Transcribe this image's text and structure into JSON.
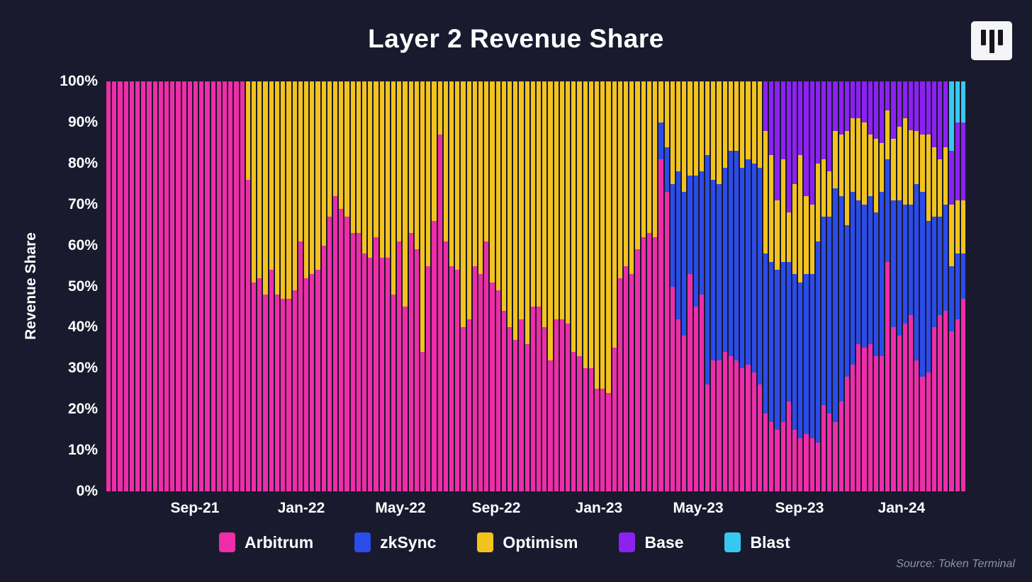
{
  "header": {
    "title": "Layer 2 Revenue Share",
    "logo": "token-terminal-logo"
  },
  "source": {
    "text": "Source: Token Terminal"
  },
  "chart_data": {
    "type": "bar",
    "stacked": true,
    "percent_stacked": true,
    "title": "Layer 2 Revenue Share",
    "ylabel": "Revenue Share",
    "ylim": [
      0,
      100
    ],
    "grid": false,
    "legend_position": "bottom",
    "x_period": "weekly bars, mid-2021 through early 2024",
    "y_ticks": [
      {
        "label": "0%",
        "value": 0
      },
      {
        "label": "10%",
        "value": 10
      },
      {
        "label": "20%",
        "value": 20
      },
      {
        "label": "30%",
        "value": 30
      },
      {
        "label": "40%",
        "value": 40
      },
      {
        "label": "50%",
        "value": 50
      },
      {
        "label": "60%",
        "value": 60
      },
      {
        "label": "70%",
        "value": 70
      },
      {
        "label": "80%",
        "value": 80
      },
      {
        "label": "90%",
        "value": 90
      },
      {
        "label": "100%",
        "value": 100
      }
    ],
    "x_ticks": [
      {
        "label": "Sep-21",
        "pos": 0.1031
      },
      {
        "label": "Jan-22",
        "pos": 0.2269
      },
      {
        "label": "May-22",
        "pos": 0.3424
      },
      {
        "label": "Sep-22",
        "pos": 0.4538
      },
      {
        "label": "Jan-23",
        "pos": 0.5734
      },
      {
        "label": "May-23",
        "pos": 0.689
      },
      {
        "label": "Sep-23",
        "pos": 0.8069
      },
      {
        "label": "Jan-24",
        "pos": 0.9257
      }
    ],
    "series": [
      {
        "name": "Arbitrum",
        "color": "#ee2da8"
      },
      {
        "name": "zkSync",
        "color": "#2b4ce8"
      },
      {
        "name": "Optimism",
        "color": "#f2c31e"
      },
      {
        "name": "Base",
        "color": "#8c21f2"
      },
      {
        "name": "Blast",
        "color": "#36c8f1"
      }
    ],
    "bars": [
      [
        100,
        0,
        0,
        0,
        0
      ],
      [
        100,
        0,
        0,
        0,
        0
      ],
      [
        100,
        0,
        0,
        0,
        0
      ],
      [
        100,
        0,
        0,
        0,
        0
      ],
      [
        100,
        0,
        0,
        0,
        0
      ],
      [
        100,
        0,
        0,
        0,
        0
      ],
      [
        100,
        0,
        0,
        0,
        0
      ],
      [
        100,
        0,
        0,
        0,
        0
      ],
      [
        100,
        0,
        0,
        0,
        0
      ],
      [
        100,
        0,
        0,
        0,
        0
      ],
      [
        100,
        0,
        0,
        0,
        0
      ],
      [
        100,
        0,
        0,
        0,
        0
      ],
      [
        100,
        0,
        0,
        0,
        0
      ],
      [
        100,
        0,
        0,
        0,
        0
      ],
      [
        100,
        0,
        0,
        0,
        0
      ],
      [
        100,
        0,
        0,
        0,
        0
      ],
      [
        100,
        0,
        0,
        0,
        0
      ],
      [
        100,
        0,
        0,
        0,
        0
      ],
      [
        100,
        0,
        0,
        0,
        0
      ],
      [
        100,
        0,
        0,
        0,
        0
      ],
      [
        100,
        0,
        0,
        0,
        0
      ],
      [
        100,
        0,
        0,
        0,
        0
      ],
      [
        100,
        0,
        0,
        0,
        0
      ],
      [
        100,
        0,
        0,
        0,
        0
      ],
      [
        76,
        0,
        24,
        0,
        0
      ],
      [
        51,
        0,
        49,
        0,
        0
      ],
      [
        52,
        0,
        48,
        0,
        0
      ],
      [
        48,
        0,
        52,
        0,
        0
      ],
      [
        54,
        0,
        46,
        0,
        0
      ],
      [
        48,
        0,
        52,
        0,
        0
      ],
      [
        47,
        0,
        53,
        0,
        0
      ],
      [
        47,
        0,
        53,
        0,
        0
      ],
      [
        49,
        0,
        51,
        0,
        0
      ],
      [
        61,
        0,
        39,
        0,
        0
      ],
      [
        52,
        0,
        48,
        0,
        0
      ],
      [
        53,
        0,
        47,
        0,
        0
      ],
      [
        54,
        0,
        46,
        0,
        0
      ],
      [
        60,
        0,
        40,
        0,
        0
      ],
      [
        67,
        0,
        33,
        0,
        0
      ],
      [
        72,
        0,
        28,
        0,
        0
      ],
      [
        69,
        0,
        31,
        0,
        0
      ],
      [
        67,
        0,
        33,
        0,
        0
      ],
      [
        63,
        0,
        37,
        0,
        0
      ],
      [
        63,
        0,
        37,
        0,
        0
      ],
      [
        58,
        0,
        42,
        0,
        0
      ],
      [
        57,
        0,
        43,
        0,
        0
      ],
      [
        62,
        0,
        38,
        0,
        0
      ],
      [
        57,
        0,
        43,
        0,
        0
      ],
      [
        57,
        0,
        43,
        0,
        0
      ],
      [
        48,
        0,
        52,
        0,
        0
      ],
      [
        61,
        0,
        39,
        0,
        0
      ],
      [
        45,
        0,
        55,
        0,
        0
      ],
      [
        63,
        0,
        37,
        0,
        0
      ],
      [
        59,
        0,
        41,
        0,
        0
      ],
      [
        34,
        0,
        66,
        0,
        0
      ],
      [
        55,
        0,
        45,
        0,
        0
      ],
      [
        66,
        0,
        34,
        0,
        0
      ],
      [
        87,
        0,
        13,
        0,
        0
      ],
      [
        61,
        0,
        39,
        0,
        0
      ],
      [
        55,
        0,
        45,
        0,
        0
      ],
      [
        54,
        0,
        46,
        0,
        0
      ],
      [
        40,
        0,
        60,
        0,
        0
      ],
      [
        42,
        0,
        58,
        0,
        0
      ],
      [
        55,
        0,
        45,
        0,
        0
      ],
      [
        53,
        0,
        47,
        0,
        0
      ],
      [
        61,
        0,
        39,
        0,
        0
      ],
      [
        51,
        0,
        49,
        0,
        0
      ],
      [
        49,
        0,
        51,
        0,
        0
      ],
      [
        44,
        0,
        56,
        0,
        0
      ],
      [
        40,
        0,
        60,
        0,
        0
      ],
      [
        37,
        0,
        63,
        0,
        0
      ],
      [
        42,
        0,
        58,
        0,
        0
      ],
      [
        36,
        0,
        64,
        0,
        0
      ],
      [
        45,
        0,
        55,
        0,
        0
      ],
      [
        45,
        0,
        55,
        0,
        0
      ],
      [
        40,
        0,
        60,
        0,
        0
      ],
      [
        32,
        0,
        68,
        0,
        0
      ],
      [
        42,
        0,
        58,
        0,
        0
      ],
      [
        42,
        0,
        58,
        0,
        0
      ],
      [
        41,
        0,
        59,
        0,
        0
      ],
      [
        34,
        0,
        66,
        0,
        0
      ],
      [
        33,
        0,
        67,
        0,
        0
      ],
      [
        30,
        0,
        70,
        0,
        0
      ],
      [
        30,
        0,
        70,
        0,
        0
      ],
      [
        25,
        0,
        75,
        0,
        0
      ],
      [
        25,
        0,
        75,
        0,
        0
      ],
      [
        24,
        0,
        76,
        0,
        0
      ],
      [
        35,
        0,
        65,
        0,
        0
      ],
      [
        52,
        0,
        48,
        0,
        0
      ],
      [
        55,
        0,
        45,
        0,
        0
      ],
      [
        53,
        0,
        47,
        0,
        0
      ],
      [
        59,
        0,
        41,
        0,
        0
      ],
      [
        62,
        0,
        38,
        0,
        0
      ],
      [
        63,
        0,
        37,
        0,
        0
      ],
      [
        62,
        0,
        38,
        0,
        0
      ],
      [
        81,
        9,
        10,
        0,
        0
      ],
      [
        73,
        11,
        16,
        0,
        0
      ],
      [
        50,
        25,
        25,
        0,
        0
      ],
      [
        42,
        36,
        22,
        0,
        0
      ],
      [
        38,
        35,
        27,
        0,
        0
      ],
      [
        53,
        24,
        23,
        0,
        0
      ],
      [
        45,
        32,
        23,
        0,
        0
      ],
      [
        48,
        30,
        22,
        0,
        0
      ],
      [
        26,
        56,
        18,
        0,
        0
      ],
      [
        32,
        44,
        24,
        0,
        0
      ],
      [
        32,
        43,
        25,
        0,
        0
      ],
      [
        34,
        45,
        21,
        0,
        0
      ],
      [
        33,
        50,
        17,
        0,
        0
      ],
      [
        32,
        51,
        17,
        0,
        0
      ],
      [
        30,
        49,
        21,
        0,
        0
      ],
      [
        31,
        50,
        19,
        0,
        0
      ],
      [
        29,
        51,
        20,
        0,
        0
      ],
      [
        26,
        53,
        21,
        0,
        0
      ],
      [
        19,
        39,
        30,
        12,
        0
      ],
      [
        17,
        39,
        26,
        18,
        0
      ],
      [
        15,
        39,
        17,
        29,
        0
      ],
      [
        17,
        39,
        25,
        19,
        0
      ],
      [
        22,
        34,
        12,
        32,
        0
      ],
      [
        15,
        38,
        22,
        25,
        0
      ],
      [
        13,
        38,
        31,
        18,
        0
      ],
      [
        14,
        39,
        19,
        28,
        0
      ],
      [
        13,
        40,
        17,
        30,
        0
      ],
      [
        12,
        49,
        19,
        20,
        0
      ],
      [
        21,
        46,
        14,
        19,
        0
      ],
      [
        19,
        48,
        11,
        22,
        0
      ],
      [
        17,
        57,
        14,
        12,
        0
      ],
      [
        22,
        50,
        15,
        13,
        0
      ],
      [
        28,
        37,
        23,
        12,
        0
      ],
      [
        31,
        42,
        18,
        9,
        0
      ],
      [
        36,
        35,
        20,
        9,
        0
      ],
      [
        35,
        35,
        20,
        10,
        0
      ],
      [
        36,
        36,
        15,
        13,
        0
      ],
      [
        33,
        35,
        18,
        14,
        0
      ],
      [
        33,
        40,
        12,
        15,
        0
      ],
      [
        56,
        25,
        12,
        7,
        0
      ],
      [
        40,
        31,
        15,
        14,
        0
      ],
      [
        38,
        33,
        18,
        11,
        0
      ],
      [
        41,
        29,
        21,
        9,
        0
      ],
      [
        43,
        27,
        18,
        12,
        0
      ],
      [
        32,
        43,
        13,
        12,
        0
      ],
      [
        28,
        45,
        14,
        13,
        0
      ],
      [
        29,
        37,
        21,
        13,
        0
      ],
      [
        40,
        27,
        17,
        16,
        0
      ],
      [
        43,
        24,
        14,
        19,
        0
      ],
      [
        44,
        26,
        14,
        16,
        0
      ],
      [
        39,
        16,
        15,
        13,
        17
      ],
      [
        42,
        16,
        13,
        19,
        10
      ],
      [
        47,
        11,
        13,
        19,
        10
      ]
    ]
  }
}
